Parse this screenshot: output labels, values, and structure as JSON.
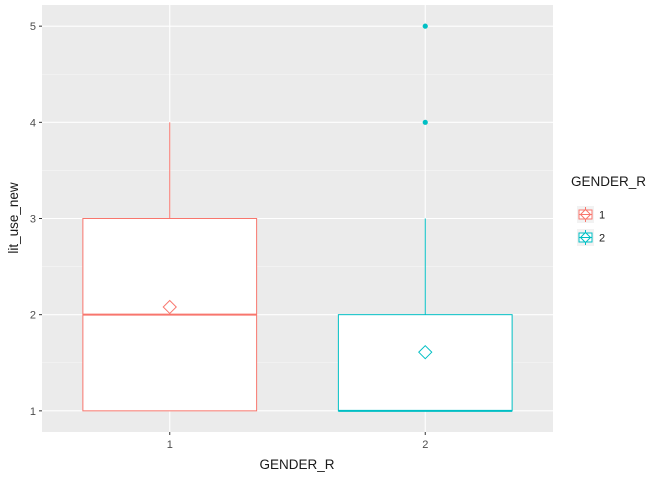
{
  "chart_data": {
    "type": "boxplot",
    "xlabel": "GENDER_R",
    "ylabel": "lit_use_new",
    "categories": [
      "1",
      "2"
    ],
    "ylim": [
      0.78,
      5.22
    ],
    "yticks": [
      1,
      2,
      3,
      4,
      5
    ],
    "grid": true,
    "legend": {
      "title": "GENDER_R",
      "position": "right",
      "entries": [
        "1",
        "2"
      ]
    },
    "series": [
      {
        "name": "1",
        "color": "#F8766D",
        "min": 1,
        "q1": 1,
        "median": 2,
        "q3": 3,
        "max": 4,
        "mean": 2.08,
        "outliers": []
      },
      {
        "name": "2",
        "color": "#00BFC4",
        "min": 1,
        "q1": 1,
        "median": 1,
        "q3": 2,
        "max": 3,
        "mean": 1.61,
        "outliers": [
          4,
          5
        ]
      }
    ],
    "colors": {
      "panel_bg": "#EBEBEB",
      "grid_major": "#FFFFFF",
      "box_fill": "#FFFFFF"
    }
  }
}
